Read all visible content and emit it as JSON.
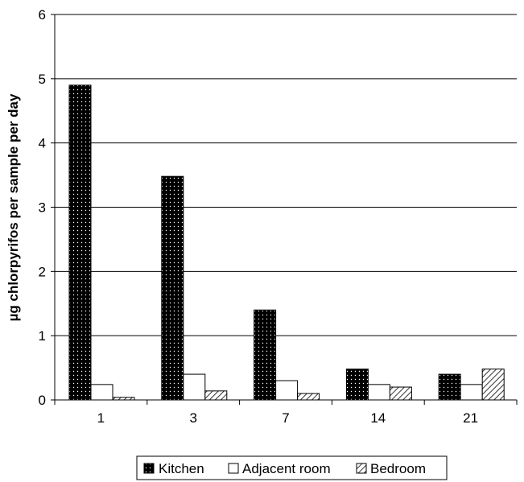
{
  "chart_data": {
    "type": "bar",
    "title": "",
    "xlabel": "",
    "ylabel": "µg chlorpyrifos per sample per day",
    "categories": [
      "1",
      "3",
      "7",
      "14",
      "21"
    ],
    "series": [
      {
        "name": "Kitchen",
        "values": [
          4.9,
          3.48,
          1.4,
          0.48,
          0.4
        ],
        "fill": "dotted-dark"
      },
      {
        "name": "Adjacent room",
        "values": [
          0.24,
          0.4,
          0.3,
          0.24,
          0.24
        ],
        "fill": "white"
      },
      {
        "name": "Bedroom",
        "values": [
          0.04,
          0.14,
          0.1,
          0.2,
          0.48
        ],
        "fill": "hatched"
      }
    ],
    "ylim": [
      0,
      6
    ],
    "yticks": [
      "0",
      "1",
      "2",
      "3",
      "4",
      "5",
      "6"
    ],
    "grid": "horizontal",
    "legend_position": "bottom"
  },
  "colors": {
    "kitchen": "#000000",
    "dots": "#ffffff",
    "adjacent": "#ffffff",
    "hatch": "#000000",
    "grid": "#000000"
  }
}
